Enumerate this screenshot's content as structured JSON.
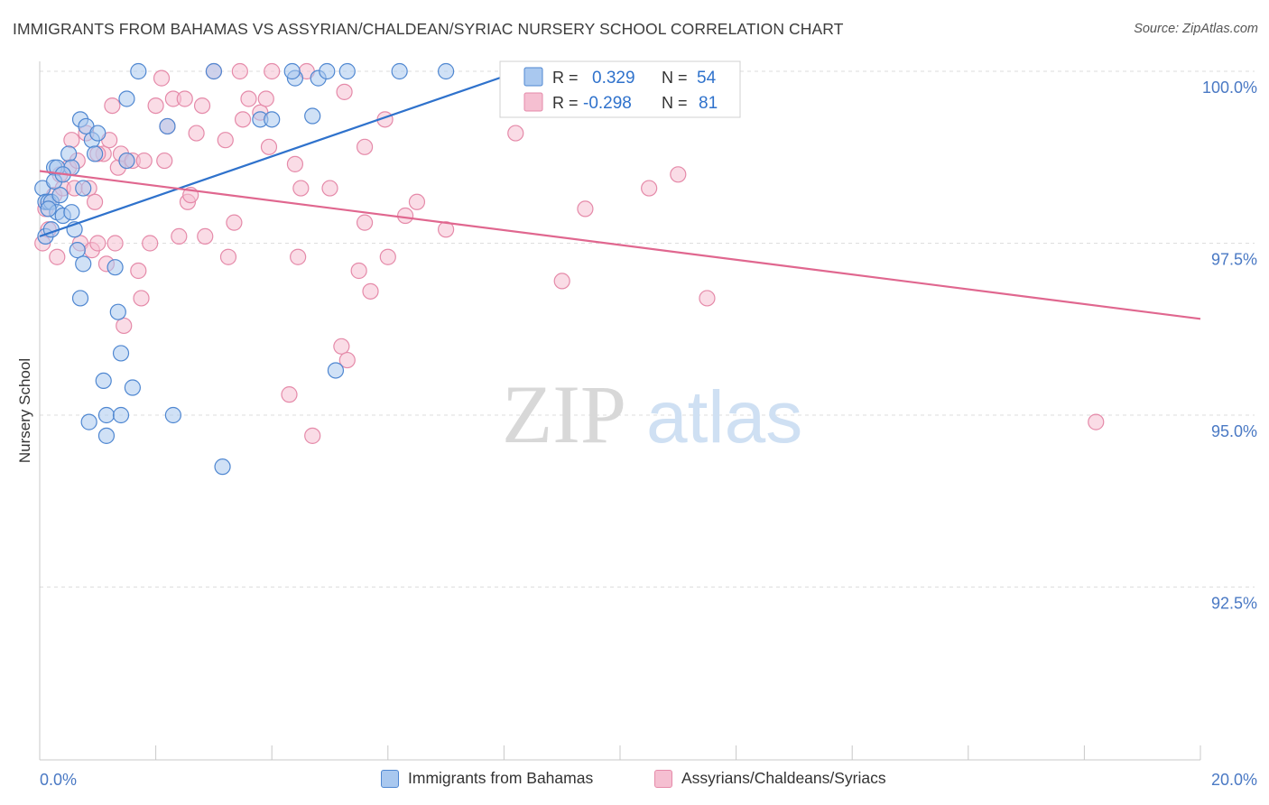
{
  "title": "IMMIGRANTS FROM BAHAMAS VS ASSYRIAN/CHALDEAN/SYRIAC NURSERY SCHOOL CORRELATION CHART",
  "source": "Source: ZipAtlas.com",
  "watermark": {
    "zip": "ZIP",
    "atlas": "atlas"
  },
  "colors": {
    "blue_fill": "#a9c8ef",
    "blue_stroke": "#4f87d1",
    "blue_line": "#2f72cc",
    "pink_fill": "#f5bfd1",
    "pink_stroke": "#e58aa9",
    "pink_line": "#e0678f",
    "axis_text": "#4a79c4",
    "grid": "#dddddd"
  },
  "legend_stats": {
    "r_label": "R =",
    "n_label": "N =",
    "series": [
      {
        "r": "0.329",
        "n": "54"
      },
      {
        "r": "-0.298",
        "n": "81"
      }
    ]
  },
  "chart_data": {
    "type": "scatter",
    "title": "IMMIGRANTS FROM BAHAMAS VS ASSYRIAN/CHALDEAN/SYRIAC NURSERY SCHOOL CORRELATION CHART",
    "xlabel": "",
    "ylabel": "Nursery School",
    "xlim": [
      0,
      20
    ],
    "ylim": [
      90.0,
      100.25
    ],
    "x_tick_labels": [
      "0.0%",
      "20.0%"
    ],
    "x_ticks": [
      0,
      2,
      4,
      6,
      8,
      10,
      12,
      14,
      16,
      18,
      20
    ],
    "y_ticks": [
      100.0,
      97.5,
      95.0,
      92.5
    ],
    "y_tick_labels": [
      "100.0%",
      "97.5%",
      "95.0%",
      "92.5%"
    ],
    "grid": true,
    "series": [
      {
        "name": "Immigrants from Bahamas",
        "color": "blue",
        "trendline": {
          "x": [
            0.0,
            8.6
          ],
          "y": [
            97.6,
            100.1
          ]
        },
        "points": [
          [
            0.05,
            98.3
          ],
          [
            0.1,
            98.1
          ],
          [
            0.1,
            97.6
          ],
          [
            0.15,
            98.1
          ],
          [
            0.2,
            98.1
          ],
          [
            0.2,
            97.7
          ],
          [
            0.25,
            98.6
          ],
          [
            0.3,
            97.95
          ],
          [
            0.3,
            98.6
          ],
          [
            0.35,
            98.2
          ],
          [
            0.4,
            97.9
          ],
          [
            0.5,
            98.8
          ],
          [
            0.55,
            98.6
          ],
          [
            0.55,
            97.95
          ],
          [
            0.6,
            97.7
          ],
          [
            0.65,
            97.4
          ],
          [
            0.7,
            96.7
          ],
          [
            0.7,
            99.3
          ],
          [
            0.75,
            97.2
          ],
          [
            0.75,
            98.3
          ],
          [
            0.8,
            99.2
          ],
          [
            0.85,
            94.9
          ],
          [
            0.9,
            99.0
          ],
          [
            0.95,
            98.8
          ],
          [
            1.1,
            95.5
          ],
          [
            1.15,
            95.0
          ],
          [
            1.15,
            94.7
          ],
          [
            1.3,
            97.15
          ],
          [
            1.35,
            96.5
          ],
          [
            1.4,
            95.9
          ],
          [
            1.4,
            95.0
          ],
          [
            1.5,
            98.7
          ],
          [
            1.5,
            99.6
          ],
          [
            1.6,
            95.4
          ],
          [
            1.7,
            100.0
          ],
          [
            2.2,
            99.2
          ],
          [
            2.3,
            95.0
          ],
          [
            3.0,
            100.0
          ],
          [
            3.15,
            94.25
          ],
          [
            3.8,
            99.3
          ],
          [
            4.0,
            99.3
          ],
          [
            4.4,
            99.9
          ],
          [
            4.35,
            100.0
          ],
          [
            4.7,
            99.35
          ],
          [
            4.8,
            99.9
          ],
          [
            4.95,
            100.0
          ],
          [
            5.1,
            95.65
          ],
          [
            5.3,
            100.0
          ],
          [
            6.2,
            100.0
          ],
          [
            7.0,
            100.0
          ],
          [
            0.25,
            98.4
          ],
          [
            0.4,
            98.5
          ],
          [
            1.0,
            99.1
          ],
          [
            0.15,
            98.0
          ]
        ]
      },
      {
        "name": "Assyrians/Chaldeans/Syriacs",
        "color": "pink",
        "trendline": {
          "x": [
            0.0,
            20.0
          ],
          "y": [
            98.55,
            96.4
          ]
        },
        "points": [
          [
            0.05,
            97.5
          ],
          [
            0.1,
            98.0
          ],
          [
            0.15,
            97.7
          ],
          [
            0.25,
            98.2
          ],
          [
            0.3,
            97.3
          ],
          [
            0.35,
            98.5
          ],
          [
            0.4,
            98.3
          ],
          [
            0.5,
            98.6
          ],
          [
            0.55,
            99.0
          ],
          [
            0.6,
            98.3
          ],
          [
            0.65,
            98.7
          ],
          [
            0.7,
            97.5
          ],
          [
            0.8,
            99.1
          ],
          [
            0.85,
            98.3
          ],
          [
            0.9,
            97.4
          ],
          [
            0.95,
            98.1
          ],
          [
            1.0,
            97.5
          ],
          [
            1.1,
            98.8
          ],
          [
            1.15,
            97.2
          ],
          [
            1.2,
            99.0
          ],
          [
            1.25,
            99.5
          ],
          [
            1.3,
            97.5
          ],
          [
            1.35,
            98.6
          ],
          [
            1.4,
            98.8
          ],
          [
            1.45,
            96.3
          ],
          [
            1.5,
            98.7
          ],
          [
            1.6,
            98.7
          ],
          [
            1.7,
            97.1
          ],
          [
            1.75,
            96.7
          ],
          [
            1.8,
            98.7
          ],
          [
            1.9,
            97.5
          ],
          [
            2.0,
            99.5
          ],
          [
            2.1,
            99.9
          ],
          [
            2.15,
            98.7
          ],
          [
            2.2,
            99.2
          ],
          [
            2.3,
            99.6
          ],
          [
            2.4,
            97.6
          ],
          [
            2.5,
            99.6
          ],
          [
            2.55,
            98.1
          ],
          [
            2.6,
            98.2
          ],
          [
            2.7,
            99.1
          ],
          [
            2.8,
            99.5
          ],
          [
            2.85,
            97.6
          ],
          [
            3.0,
            100.0
          ],
          [
            3.2,
            99.0
          ],
          [
            3.25,
            97.3
          ],
          [
            3.35,
            97.8
          ],
          [
            3.45,
            100.0
          ],
          [
            3.5,
            99.3
          ],
          [
            3.6,
            99.6
          ],
          [
            3.8,
            99.4
          ],
          [
            3.9,
            99.6
          ],
          [
            3.95,
            98.9
          ],
          [
            4.0,
            100.0
          ],
          [
            4.3,
            95.3
          ],
          [
            4.4,
            98.65
          ],
          [
            4.45,
            97.3
          ],
          [
            4.5,
            98.3
          ],
          [
            4.6,
            100.0
          ],
          [
            4.7,
            94.7
          ],
          [
            5.0,
            98.3
          ],
          [
            5.2,
            96.0
          ],
          [
            5.25,
            99.7
          ],
          [
            5.3,
            95.8
          ],
          [
            5.5,
            97.1
          ],
          [
            5.6,
            97.8
          ],
          [
            5.6,
            98.9
          ],
          [
            5.7,
            96.8
          ],
          [
            5.95,
            99.3
          ],
          [
            6.0,
            97.3
          ],
          [
            6.3,
            97.9
          ],
          [
            6.5,
            98.1
          ],
          [
            7.0,
            97.7
          ],
          [
            8.2,
            99.1
          ],
          [
            9.0,
            96.95
          ],
          [
            9.4,
            98.0
          ],
          [
            10.5,
            98.3
          ],
          [
            11.0,
            98.5
          ],
          [
            11.5,
            96.7
          ],
          [
            18.2,
            94.9
          ],
          [
            1.0,
            98.8
          ]
        ]
      }
    ]
  }
}
